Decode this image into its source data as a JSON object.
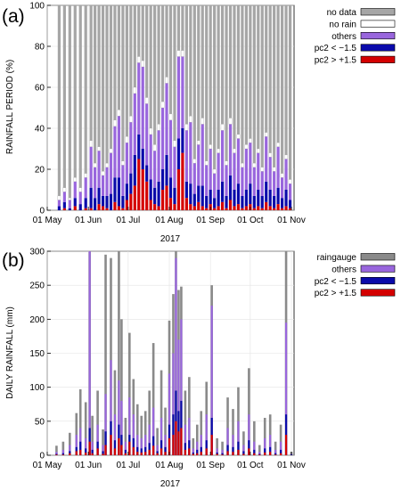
{
  "colors": {
    "no_data": "#a6a6a6",
    "no_rain": "#ffffff",
    "others": "#9966dd",
    "pc2_lt": "#0a0aaa",
    "pc2_gt": "#d40000",
    "raingauge": "#8a8a8a",
    "grid": "#e3e3e3"
  },
  "chart_data": [
    {
      "panel": "(a)",
      "type": "bar",
      "stacked": true,
      "ylabel": "RAINFALL PERIOD (%)",
      "xlabel": "2017",
      "ylim": [
        0,
        100
      ],
      "yticks": [
        0,
        20,
        40,
        60,
        80,
        100
      ],
      "x_range": [
        "2017-05-01",
        "2017-11-03"
      ],
      "xticks": [
        {
          "date": "2017-05-01",
          "label": "01 May"
        },
        {
          "date": "2017-06-01",
          "label": "01 Jun"
        },
        {
          "date": "2017-07-01",
          "label": "01 Jul"
        },
        {
          "date": "2017-08-01",
          "label": "01 Aug"
        },
        {
          "date": "2017-09-01",
          "label": "01 Sep"
        },
        {
          "date": "2017-10-01",
          "label": "01 Oct"
        },
        {
          "date": "2017-11-01",
          "label": "01 Nov"
        }
      ],
      "legend_position": "right",
      "legend": [
        {
          "key": "no_data",
          "label": "no data"
        },
        {
          "key": "no_rain",
          "label": "no rain"
        },
        {
          "key": "others",
          "label": "others"
        },
        {
          "key": "pc2_lt",
          "label": "pc2 < −1.5"
        },
        {
          "key": "pc2_gt",
          "label": "pc2 > +1.5"
        }
      ],
      "dates": [
        "2017-05-10",
        "2017-05-14",
        "2017-05-18",
        "2017-05-22",
        "2017-05-26",
        "2017-05-30",
        "2017-06-03",
        "2017-06-06",
        "2017-06-09",
        "2017-06-12",
        "2017-06-15",
        "2017-06-18",
        "2017-06-21",
        "2017-06-24",
        "2017-06-27",
        "2017-06-30",
        "2017-07-03",
        "2017-07-06",
        "2017-07-09",
        "2017-07-12",
        "2017-07-15",
        "2017-07-18",
        "2017-07-21",
        "2017-07-24",
        "2017-07-27",
        "2017-07-30",
        "2017-08-02",
        "2017-08-05",
        "2017-08-08",
        "2017-08-11",
        "2017-08-14",
        "2017-08-17",
        "2017-08-20",
        "2017-08-23",
        "2017-08-26",
        "2017-08-29",
        "2017-09-01",
        "2017-09-04",
        "2017-09-07",
        "2017-09-10",
        "2017-09-13",
        "2017-09-16",
        "2017-09-19",
        "2017-09-22",
        "2017-09-25",
        "2017-09-28",
        "2017-10-01",
        "2017-10-04",
        "2017-10-07",
        "2017-10-10",
        "2017-10-13",
        "2017-10-16",
        "2017-10-19",
        "2017-10-22",
        "2017-10-25",
        "2017-10-28",
        "2017-10-31"
      ],
      "series": [
        {
          "key": "pc2_gt",
          "name": "pc2 > +1.5",
          "values": [
            0,
            1,
            0,
            2,
            0,
            1,
            1,
            0,
            3,
            2,
            1,
            0,
            4,
            2,
            1,
            5,
            8,
            12,
            25,
            20,
            14,
            5,
            3,
            2,
            10,
            12,
            6,
            3,
            20,
            28,
            6,
            3,
            2,
            4,
            2,
            1,
            3,
            1,
            2,
            4,
            1,
            5,
            2,
            3,
            1,
            2,
            3,
            1,
            2,
            1,
            4,
            2,
            1,
            3,
            1,
            2,
            1
          ]
        },
        {
          "key": "pc2_lt",
          "name": "pc2 < −1.5",
          "values": [
            2,
            3,
            1,
            4,
            3,
            5,
            10,
            6,
            8,
            5,
            6,
            8,
            12,
            14,
            6,
            8,
            10,
            15,
            12,
            10,
            8,
            10,
            8,
            12,
            10,
            15,
            10,
            8,
            15,
            12,
            8,
            10,
            6,
            8,
            10,
            6,
            7,
            5,
            8,
            10,
            6,
            12,
            8,
            10,
            6,
            8,
            10,
            6,
            8,
            6,
            10,
            8,
            6,
            8,
            5,
            8,
            4
          ]
        },
        {
          "key": "others",
          "name": "others",
          "values": [
            3,
            5,
            4,
            8,
            6,
            10,
            20,
            15,
            18,
            10,
            14,
            20,
            25,
            30,
            15,
            20,
            25,
            30,
            35,
            40,
            30,
            22,
            18,
            25,
            30,
            35,
            28,
            20,
            40,
            35,
            25,
            30,
            15,
            20,
            30,
            15,
            20,
            12,
            18,
            25,
            15,
            25,
            18,
            22,
            14,
            20,
            20,
            14,
            18,
            12,
            22,
            16,
            12,
            20,
            10,
            15,
            8
          ]
        },
        {
          "key": "no_rain",
          "name": "no rain",
          "values": [
            2,
            2,
            1,
            2,
            2,
            2,
            3,
            2,
            2,
            2,
            2,
            2,
            3,
            3,
            2,
            3,
            3,
            3,
            3,
            3,
            3,
            3,
            3,
            3,
            3,
            3,
            3,
            3,
            3,
            3,
            3,
            3,
            2,
            2,
            3,
            2,
            2,
            2,
            2,
            3,
            2,
            3,
            2,
            2,
            2,
            2,
            2,
            2,
            2,
            2,
            2,
            2,
            2,
            2,
            2,
            2,
            2
          ]
        }
      ]
    },
    {
      "panel": "(b)",
      "type": "bar",
      "stacked": false,
      "ylabel": "DAILY RAINFALL (mm)",
      "xlabel": "2017",
      "ylim": [
        0,
        300
      ],
      "yticks": [
        0,
        50,
        100,
        150,
        200,
        250,
        300
      ],
      "x_range": [
        "2017-05-01",
        "2017-11-03"
      ],
      "xticks": [
        {
          "date": "2017-05-01",
          "label": "01 May"
        },
        {
          "date": "2017-06-01",
          "label": "01 Jun"
        },
        {
          "date": "2017-07-01",
          "label": "01 Jul"
        },
        {
          "date": "2017-08-01",
          "label": "01 Aug"
        },
        {
          "date": "2017-09-01",
          "label": "01 Sep"
        },
        {
          "date": "2017-10-01",
          "label": "01 Oct"
        },
        {
          "date": "2017-11-01",
          "label": "01 Nov"
        }
      ],
      "legend_position": "right",
      "legend": [
        {
          "key": "raingauge",
          "label": "raingauge"
        },
        {
          "key": "others",
          "label": "others"
        },
        {
          "key": "pc2_lt",
          "label": "pc2 < −1.5"
        },
        {
          "key": "pc2_gt",
          "label": "pc2 > +1.5"
        }
      ],
      "dates": [
        "2017-05-08",
        "2017-05-13",
        "2017-05-18",
        "2017-05-23",
        "2017-05-26",
        "2017-05-30",
        "2017-06-02",
        "2017-06-04",
        "2017-06-08",
        "2017-06-12",
        "2017-06-14",
        "2017-06-18",
        "2017-06-21",
        "2017-06-24",
        "2017-06-26",
        "2017-06-29",
        "2017-07-02",
        "2017-07-05",
        "2017-07-08",
        "2017-07-11",
        "2017-07-14",
        "2017-07-17",
        "2017-07-20",
        "2017-07-23",
        "2017-07-26",
        "2017-07-29",
        "2017-08-01",
        "2017-08-04",
        "2017-08-06",
        "2017-08-08",
        "2017-08-10",
        "2017-08-13",
        "2017-08-16",
        "2017-08-19",
        "2017-08-22",
        "2017-08-25",
        "2017-08-29",
        "2017-09-02",
        "2017-09-06",
        "2017-09-10",
        "2017-09-14",
        "2017-09-18",
        "2017-09-22",
        "2017-09-26",
        "2017-09-30",
        "2017-10-04",
        "2017-10-08",
        "2017-10-12",
        "2017-10-16",
        "2017-10-20",
        "2017-10-24",
        "2017-10-28",
        "2017-11-01"
      ],
      "raingauge": [
        14,
        20,
        33,
        62,
        97,
        78,
        300,
        58,
        95,
        38,
        295,
        290,
        125,
        302,
        200,
        55,
        180,
        112,
        75,
        58,
        65,
        95,
        165,
        40,
        125,
        70,
        198,
        237,
        305,
        243,
        248,
        95,
        115,
        25,
        45,
        65,
        108,
        250,
        25,
        20,
        85,
        68,
        100,
        35,
        128,
        50,
        15,
        55,
        60,
        20,
        45,
        300,
        5
      ],
      "others": [
        5,
        8,
        15,
        30,
        40,
        25,
        300,
        20,
        45,
        15,
        90,
        140,
        60,
        110,
        80,
        20,
        85,
        60,
        30,
        25,
        30,
        45,
        70,
        15,
        55,
        30,
        120,
        150,
        290,
        170,
        200,
        45,
        55,
        10,
        20,
        30,
        60,
        220,
        10,
        8,
        40,
        30,
        50,
        15,
        60,
        20,
        5,
        25,
        30,
        8,
        20,
        195,
        2
      ],
      "pc2_lt": [
        2,
        3,
        6,
        12,
        20,
        10,
        40,
        8,
        20,
        6,
        35,
        50,
        22,
        45,
        30,
        8,
        30,
        25,
        12,
        10,
        12,
        18,
        28,
        6,
        22,
        12,
        45,
        60,
        95,
        65,
        80,
        18,
        22,
        4,
        8,
        12,
        22,
        55,
        4,
        3,
        15,
        12,
        20,
        6,
        22,
        8,
        2,
        10,
        12,
        3,
        8,
        60,
        1
      ],
      "pc2_gt": [
        1,
        1,
        3,
        6,
        8,
        4,
        20,
        3,
        10,
        2,
        15,
        30,
        10,
        25,
        15,
        3,
        20,
        12,
        5,
        4,
        5,
        8,
        14,
        3,
        10,
        5,
        25,
        30,
        50,
        35,
        40,
        8,
        10,
        2,
        3,
        5,
        10,
        30,
        2,
        1,
        6,
        5,
        8,
        2,
        10,
        3,
        1,
        4,
        5,
        1,
        3,
        30,
        0
      ]
    }
  ]
}
